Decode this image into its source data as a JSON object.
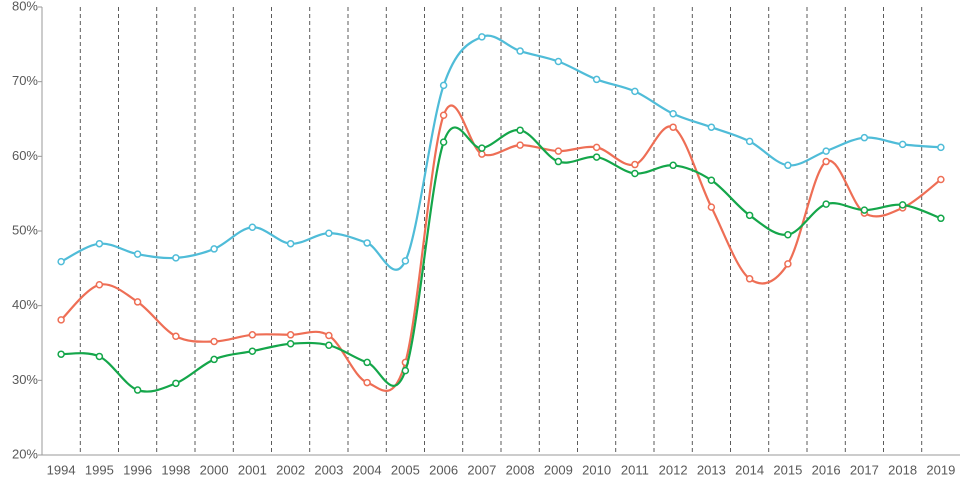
{
  "chart_data": {
    "type": "line",
    "categories": [
      "1994",
      "1995",
      "1996",
      "1998",
      "2000",
      "2001",
      "2002",
      "2003",
      "2004",
      "2005",
      "2006",
      "2007",
      "2008",
      "2009",
      "2010",
      "2011",
      "2012",
      "2013",
      "2014",
      "2015",
      "2016",
      "2017",
      "2018",
      "2019"
    ],
    "series": [
      {
        "color": "#4fbcd8",
        "values": [
          45.9,
          48.3,
          46.9,
          46.4,
          47.6,
          50.5,
          48.3,
          49.7,
          48.4,
          46.0,
          69.5,
          76.0,
          74.1,
          72.7,
          70.3,
          68.7,
          65.7,
          63.9,
          62.0,
          58.8,
          60.7,
          62.5,
          61.6,
          61.2
        ]
      },
      {
        "color": "#ee6e55",
        "values": [
          38.1,
          42.8,
          40.5,
          35.9,
          35.2,
          36.1,
          36.1,
          36.0,
          29.7,
          32.4,
          65.5,
          60.3,
          61.5,
          60.7,
          61.2,
          58.9,
          63.9,
          53.2,
          43.6,
          45.6,
          59.3,
          52.4,
          53.1,
          56.9
        ]
      },
      {
        "color": "#14a64a",
        "values": [
          33.5,
          33.2,
          28.7,
          29.6,
          32.8,
          33.9,
          34.9,
          34.7,
          32.4,
          31.3,
          61.9,
          61.1,
          63.5,
          59.3,
          59.9,
          57.7,
          58.8,
          56.8,
          52.1,
          49.5,
          53.6,
          52.8,
          53.5,
          51.7
        ]
      }
    ],
    "ylim": [
      20,
      80
    ],
    "yticks": [
      {
        "value": 20,
        "label": "20%"
      },
      {
        "value": 30,
        "label": "30%"
      },
      {
        "value": 40,
        "label": "40%"
      },
      {
        "value": 50,
        "label": "50%"
      },
      {
        "value": 60,
        "label": "60%"
      },
      {
        "value": 70,
        "label": "70%"
      },
      {
        "value": 80,
        "label": "80%"
      }
    ],
    "grid": "x-dashed"
  }
}
